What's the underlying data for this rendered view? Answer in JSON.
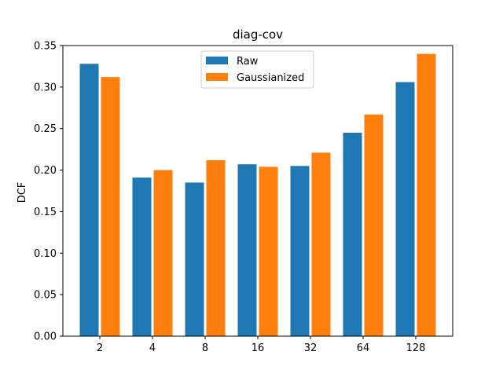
{
  "chart_data": {
    "type": "bar",
    "title": "diag-cov",
    "xlabel": "",
    "ylabel": "DCF",
    "categories": [
      "2",
      "4",
      "8",
      "16",
      "32",
      "64",
      "128"
    ],
    "series": [
      {
        "name": "Raw",
        "color": "#1f77b4",
        "values": [
          0.328,
          0.191,
          0.185,
          0.207,
          0.205,
          0.245,
          0.306
        ]
      },
      {
        "name": "Gaussianized",
        "color": "#ff7f0e",
        "values": [
          0.312,
          0.2,
          0.212,
          0.204,
          0.221,
          0.267,
          0.34
        ]
      }
    ],
    "ylim": [
      0,
      0.35
    ],
    "yticks": [
      "0.00",
      "0.05",
      "0.10",
      "0.15",
      "0.20",
      "0.25",
      "0.30",
      "0.35"
    ],
    "ytick_values": [
      0,
      0.05,
      0.1,
      0.15,
      0.2,
      0.25,
      0.3,
      0.35
    ],
    "legend_position": "upper-center",
    "grid": false
  }
}
